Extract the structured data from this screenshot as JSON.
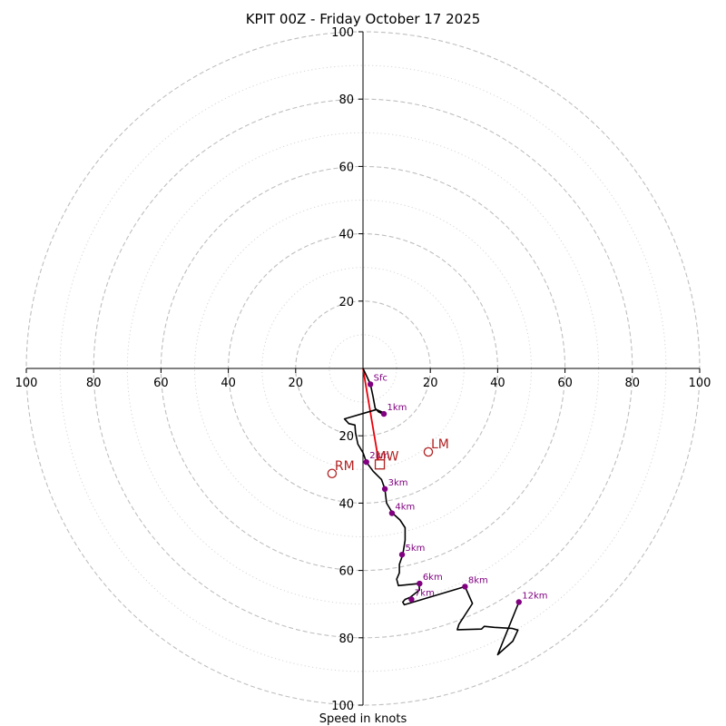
{
  "chart_data": {
    "type": "hodograph",
    "title": "KPIT 00Z - Friday October 17 2025",
    "xlabel": "Speed in knots",
    "range": [
      -100,
      100
    ],
    "major_rings": [
      20,
      40,
      60,
      80,
      100
    ],
    "minor_rings": [
      10,
      30,
      50,
      70,
      90
    ],
    "axis_ticks": {
      "x": [
        "100",
        "80",
        "60",
        "40",
        "20",
        "20",
        "40",
        "60",
        "80",
        "100"
      ],
      "y": [
        "100",
        "80",
        "60",
        "40",
        "20",
        "20",
        "40",
        "60",
        "80",
        "100"
      ]
    },
    "profile": [
      [
        0,
        0
      ],
      [
        2.2,
        -4.7
      ],
      [
        3.0,
        -8.4
      ],
      [
        3.6,
        -11.8
      ],
      [
        4.6,
        -12.9
      ],
      [
        6.5,
        -13.8
      ],
      [
        5.8,
        -13.0
      ],
      [
        4.0,
        -12.2
      ],
      [
        -5.5,
        -15.0
      ],
      [
        -4.2,
        -16.4
      ],
      [
        -2.4,
        -16.8
      ],
      [
        -2.2,
        -19.2
      ],
      [
        -1.5,
        -22.5
      ],
      [
        0.0,
        -25.0
      ],
      [
        1.0,
        -27.8
      ],
      [
        3.0,
        -30.5
      ],
      [
        5.5,
        -33.0
      ],
      [
        6.5,
        -35.8
      ],
      [
        7.0,
        -40.0
      ],
      [
        8.8,
        -43.0
      ],
      [
        11.0,
        -45.0
      ],
      [
        12.5,
        -47.3
      ],
      [
        12.5,
        -51.0
      ],
      [
        11.8,
        -55.3
      ],
      [
        10.8,
        -58.2
      ],
      [
        10.8,
        -60.7
      ],
      [
        10.0,
        -62.6
      ],
      [
        10.5,
        -64.5
      ],
      [
        16.6,
        -63.9
      ],
      [
        16.8,
        -65.8
      ],
      [
        14.0,
        -68.0
      ],
      [
        12.5,
        -68.6
      ],
      [
        11.8,
        -69.4
      ],
      [
        12.3,
        -70.2
      ],
      [
        30.3,
        -64.8
      ],
      [
        32.5,
        -69.8
      ],
      [
        28.5,
        -76.0
      ],
      [
        28.0,
        -77.6
      ],
      [
        35.2,
        -77.4
      ],
      [
        36.0,
        -76.6
      ],
      [
        39.0,
        -76.9
      ],
      [
        44.2,
        -77.2
      ],
      [
        46.0,
        -77.7
      ],
      [
        44.5,
        -81.0
      ],
      [
        40.0,
        -85.0
      ],
      [
        46.3,
        -69.4
      ]
    ],
    "height_markers": [
      {
        "label": "Sfc",
        "u": 2.2,
        "v": -4.7
      },
      {
        "label": "1km",
        "u": 6.2,
        "v": -13.5
      },
      {
        "label": "2km",
        "u": 1.0,
        "v": -27.8
      },
      {
        "label": "3km",
        "u": 6.5,
        "v": -35.8
      },
      {
        "label": "4km",
        "u": 8.6,
        "v": -43.0
      },
      {
        "label": "5km",
        "u": 11.6,
        "v": -55.3
      },
      {
        "label": "6km",
        "u": 16.8,
        "v": -63.9
      },
      {
        "label": "7km",
        "u": 14.4,
        "v": -68.6
      },
      {
        "label": "8km",
        "u": 30.3,
        "v": -64.8
      },
      {
        "label": "12km",
        "u": 46.3,
        "v": -69.4
      }
    ],
    "storm_motion": {
      "line_to": {
        "u": 4.6,
        "v": -27.3
      },
      "mean_wind": {
        "label": "MW",
        "u": 5.0,
        "v": -28.5
      },
      "left_mover": {
        "label": "LM",
        "u": 19.4,
        "v": -24.8
      },
      "right_mover": {
        "label": "RM",
        "u": -9.2,
        "v": -31.2
      }
    },
    "colors": {
      "profile": "#000000",
      "marker": "#800080",
      "storm": "#b22222",
      "motion_line": "#e8000b",
      "ring": "#bfbfbf",
      "minor_ring": "#d6d6d6"
    }
  }
}
